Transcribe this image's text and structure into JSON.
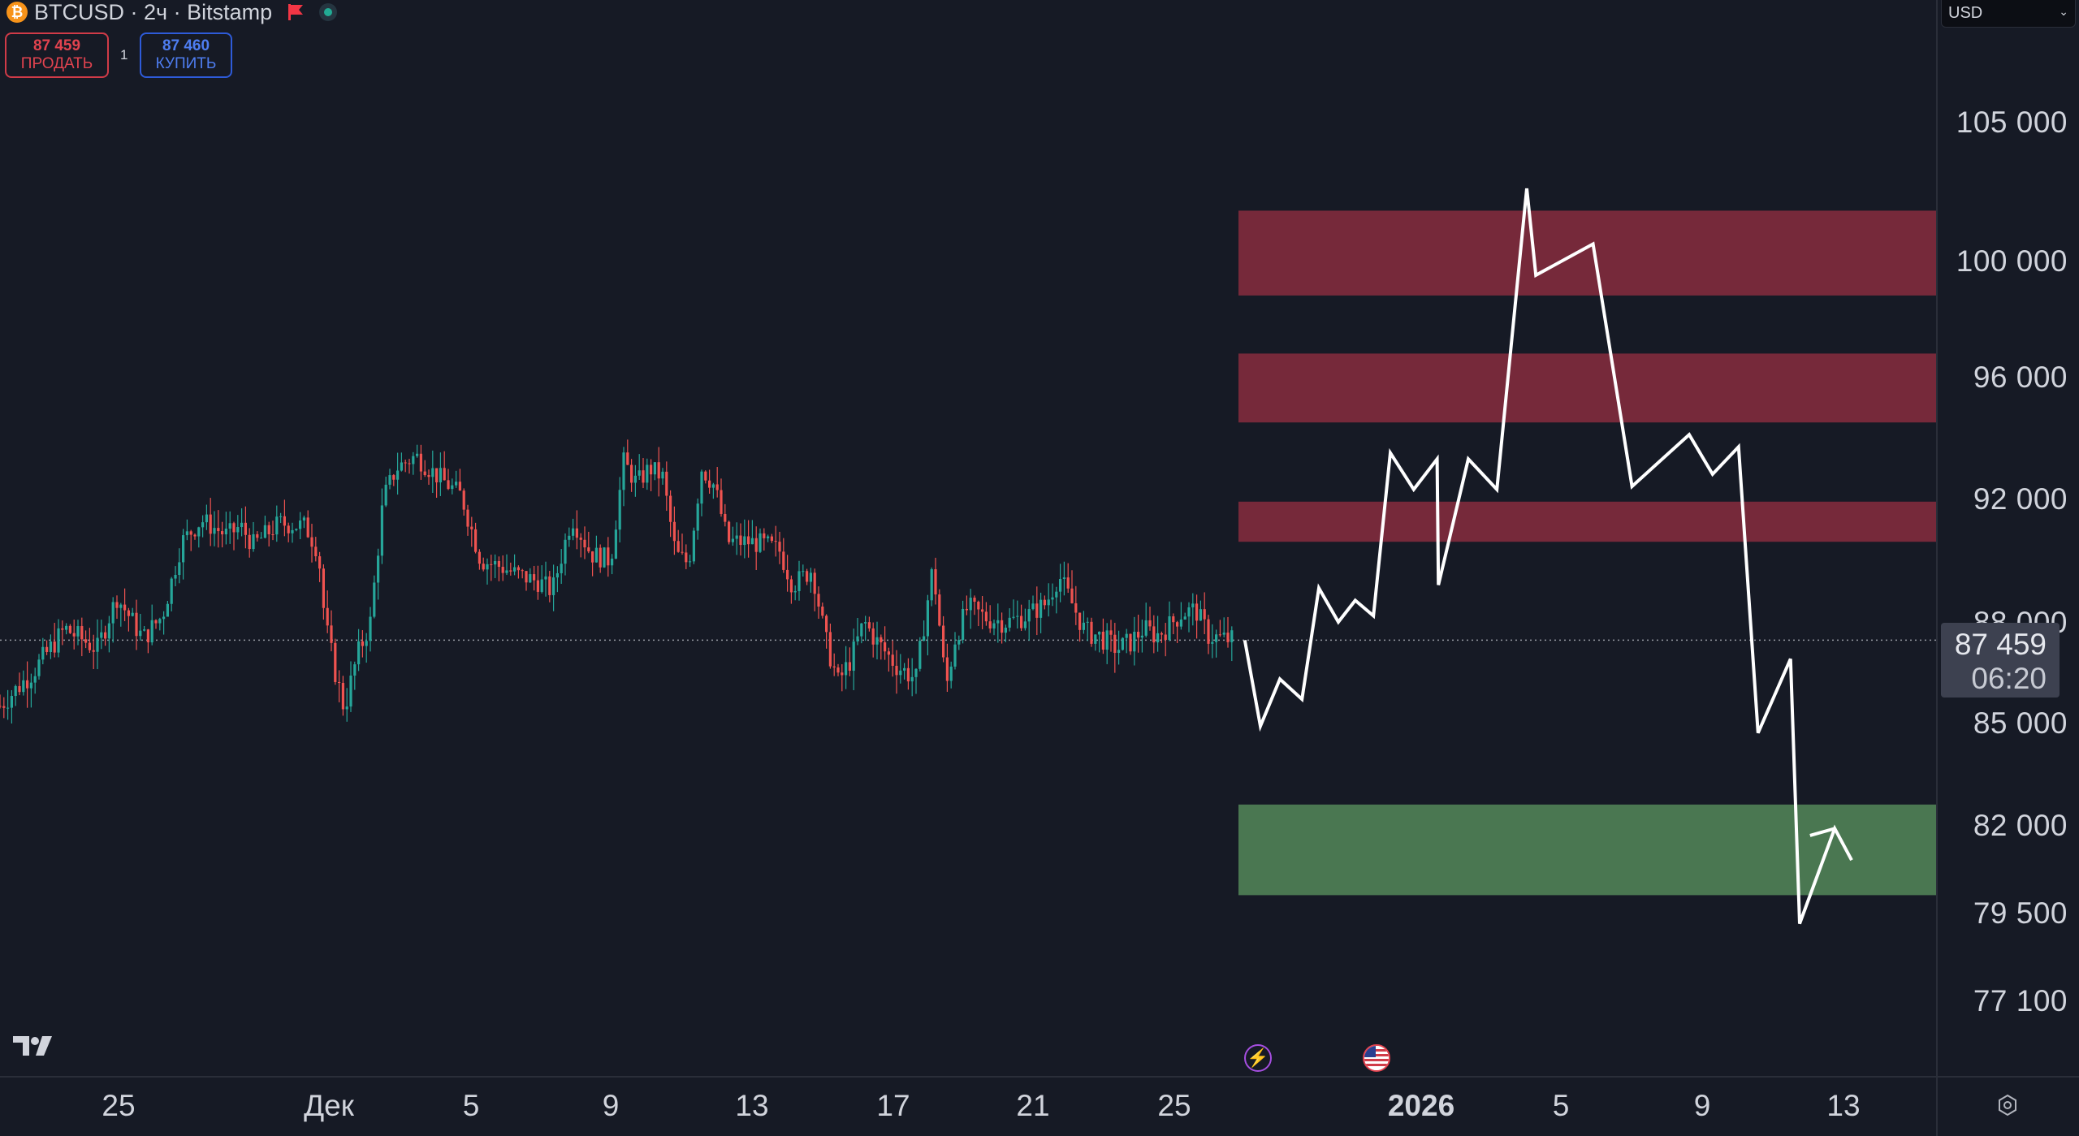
{
  "header": {
    "symbol_icon": "bitcoin-icon",
    "symbol_glyph": "₿",
    "title": "BTCUSD · 2ч · Bitstamp"
  },
  "trade": {
    "sell_price": "87 459",
    "sell_label": "ПРОДАТЬ",
    "spread": "1",
    "buy_price": "87 460",
    "buy_label": "КУПИТЬ"
  },
  "currency": {
    "value": "USD"
  },
  "price_scale": {
    "ticks": [
      "105 000",
      "100 000",
      "96 000",
      "92 000",
      "88 000",
      "85 000",
      "82 000",
      "79 500",
      "77 100"
    ],
    "last_price": "87 459",
    "countdown": "06:20"
  },
  "time_scale": {
    "ticks": [
      "25",
      "Дек",
      "5",
      "9",
      "13",
      "17",
      "21",
      "25",
      "2026",
      "5",
      "9",
      "13"
    ]
  },
  "colors": {
    "background": "#161a25",
    "up_candle": "#26a69a",
    "down_candle": "#ef5350",
    "resistance_zone": "#76293a",
    "support_zone": "#4a7751",
    "projection_line": "#ffffff"
  },
  "chart_data": {
    "type": "candlestick",
    "symbol": "BTCUSD",
    "interval": "2ч",
    "exchange": "Bitstamp",
    "last_price": 87459,
    "ylim": [
      75500,
      107500
    ],
    "price_path": [
      [
        0,
        85500
      ],
      [
        25,
        86500
      ],
      [
        50,
        87800
      ],
      [
        75,
        87200
      ],
      [
        90,
        88800
      ],
      [
        110,
        87500
      ],
      [
        125,
        88200
      ],
      [
        140,
        90600
      ],
      [
        155,
        91300
      ],
      [
        175,
        90800
      ],
      [
        185,
        91100
      ],
      [
        195,
        90500
      ],
      [
        215,
        91200
      ],
      [
        235,
        91100
      ],
      [
        245,
        90300
      ],
      [
        250,
        88000
      ],
      [
        258,
        86500
      ],
      [
        265,
        85400
      ],
      [
        275,
        87000
      ],
      [
        285,
        88000
      ],
      [
        295,
        92000
      ],
      [
        305,
        93000
      ],
      [
        320,
        93400
      ],
      [
        335,
        92800
      ],
      [
        355,
        92100
      ],
      [
        370,
        90000
      ],
      [
        385,
        89800
      ],
      [
        400,
        89500
      ],
      [
        415,
        89300
      ],
      [
        425,
        89000
      ],
      [
        440,
        91400
      ],
      [
        455,
        90200
      ],
      [
        470,
        90000
      ],
      [
        480,
        93200
      ],
      [
        490,
        92500
      ],
      [
        500,
        93000
      ],
      [
        510,
        92700
      ],
      [
        520,
        90200
      ],
      [
        530,
        89900
      ],
      [
        540,
        93000
      ],
      [
        550,
        92400
      ],
      [
        560,
        90600
      ],
      [
        575,
        90600
      ],
      [
        590,
        90500
      ],
      [
        600,
        90300
      ],
      [
        610,
        89200
      ],
      [
        625,
        89700
      ],
      [
        635,
        87500
      ],
      [
        645,
        86200
      ],
      [
        655,
        86900
      ],
      [
        665,
        88000
      ],
      [
        675,
        87400
      ],
      [
        690,
        86700
      ],
      [
        705,
        86300
      ],
      [
        718,
        89800
      ],
      [
        728,
        86000
      ],
      [
        735,
        87500
      ],
      [
        745,
        88500
      ],
      [
        760,
        88100
      ],
      [
        775,
        88000
      ],
      [
        790,
        88200
      ],
      [
        805,
        88600
      ],
      [
        815,
        89500
      ],
      [
        825,
        88600
      ],
      [
        835,
        87700
      ],
      [
        845,
        87600
      ],
      [
        860,
        87200
      ],
      [
        870,
        87400
      ],
      [
        880,
        87800
      ],
      [
        890,
        87600
      ],
      [
        900,
        87900
      ],
      [
        910,
        88300
      ],
      [
        920,
        88400
      ],
      [
        930,
        87600
      ],
      [
        940,
        87500
      ],
      [
        950,
        87459
      ]
    ],
    "resistance_zones": [
      [
        98800,
        101800
      ],
      [
        94500,
        96800
      ],
      [
        90600,
        91900
      ]
    ],
    "support_zones": [
      [
        80000,
        82600
      ]
    ],
    "projection_path": [
      [
        958,
        87459
      ],
      [
        970,
        84900
      ],
      [
        985,
        86300
      ],
      [
        1002,
        85700
      ],
      [
        1015,
        89100
      ],
      [
        1030,
        88000
      ],
      [
        1043,
        88700
      ],
      [
        1057,
        88200
      ],
      [
        1070,
        93500
      ],
      [
        1088,
        92300
      ],
      [
        1106,
        93300
      ],
      [
        1107,
        89200
      ],
      [
        1130,
        93300
      ],
      [
        1152,
        92300
      ],
      [
        1175,
        102600
      ],
      [
        1182,
        99500
      ],
      [
        1226,
        100600
      ],
      [
        1256,
        92400
      ],
      [
        1300,
        94100
      ],
      [
        1318,
        92800
      ],
      [
        1338,
        93700
      ],
      [
        1353,
        84700
      ],
      [
        1378,
        86900
      ],
      [
        1385,
        79200
      ],
      [
        1412,
        81900
      ],
      [
        1425,
        81000
      ],
      [
        1412,
        81900
      ],
      [
        1393,
        81700
      ]
    ]
  }
}
